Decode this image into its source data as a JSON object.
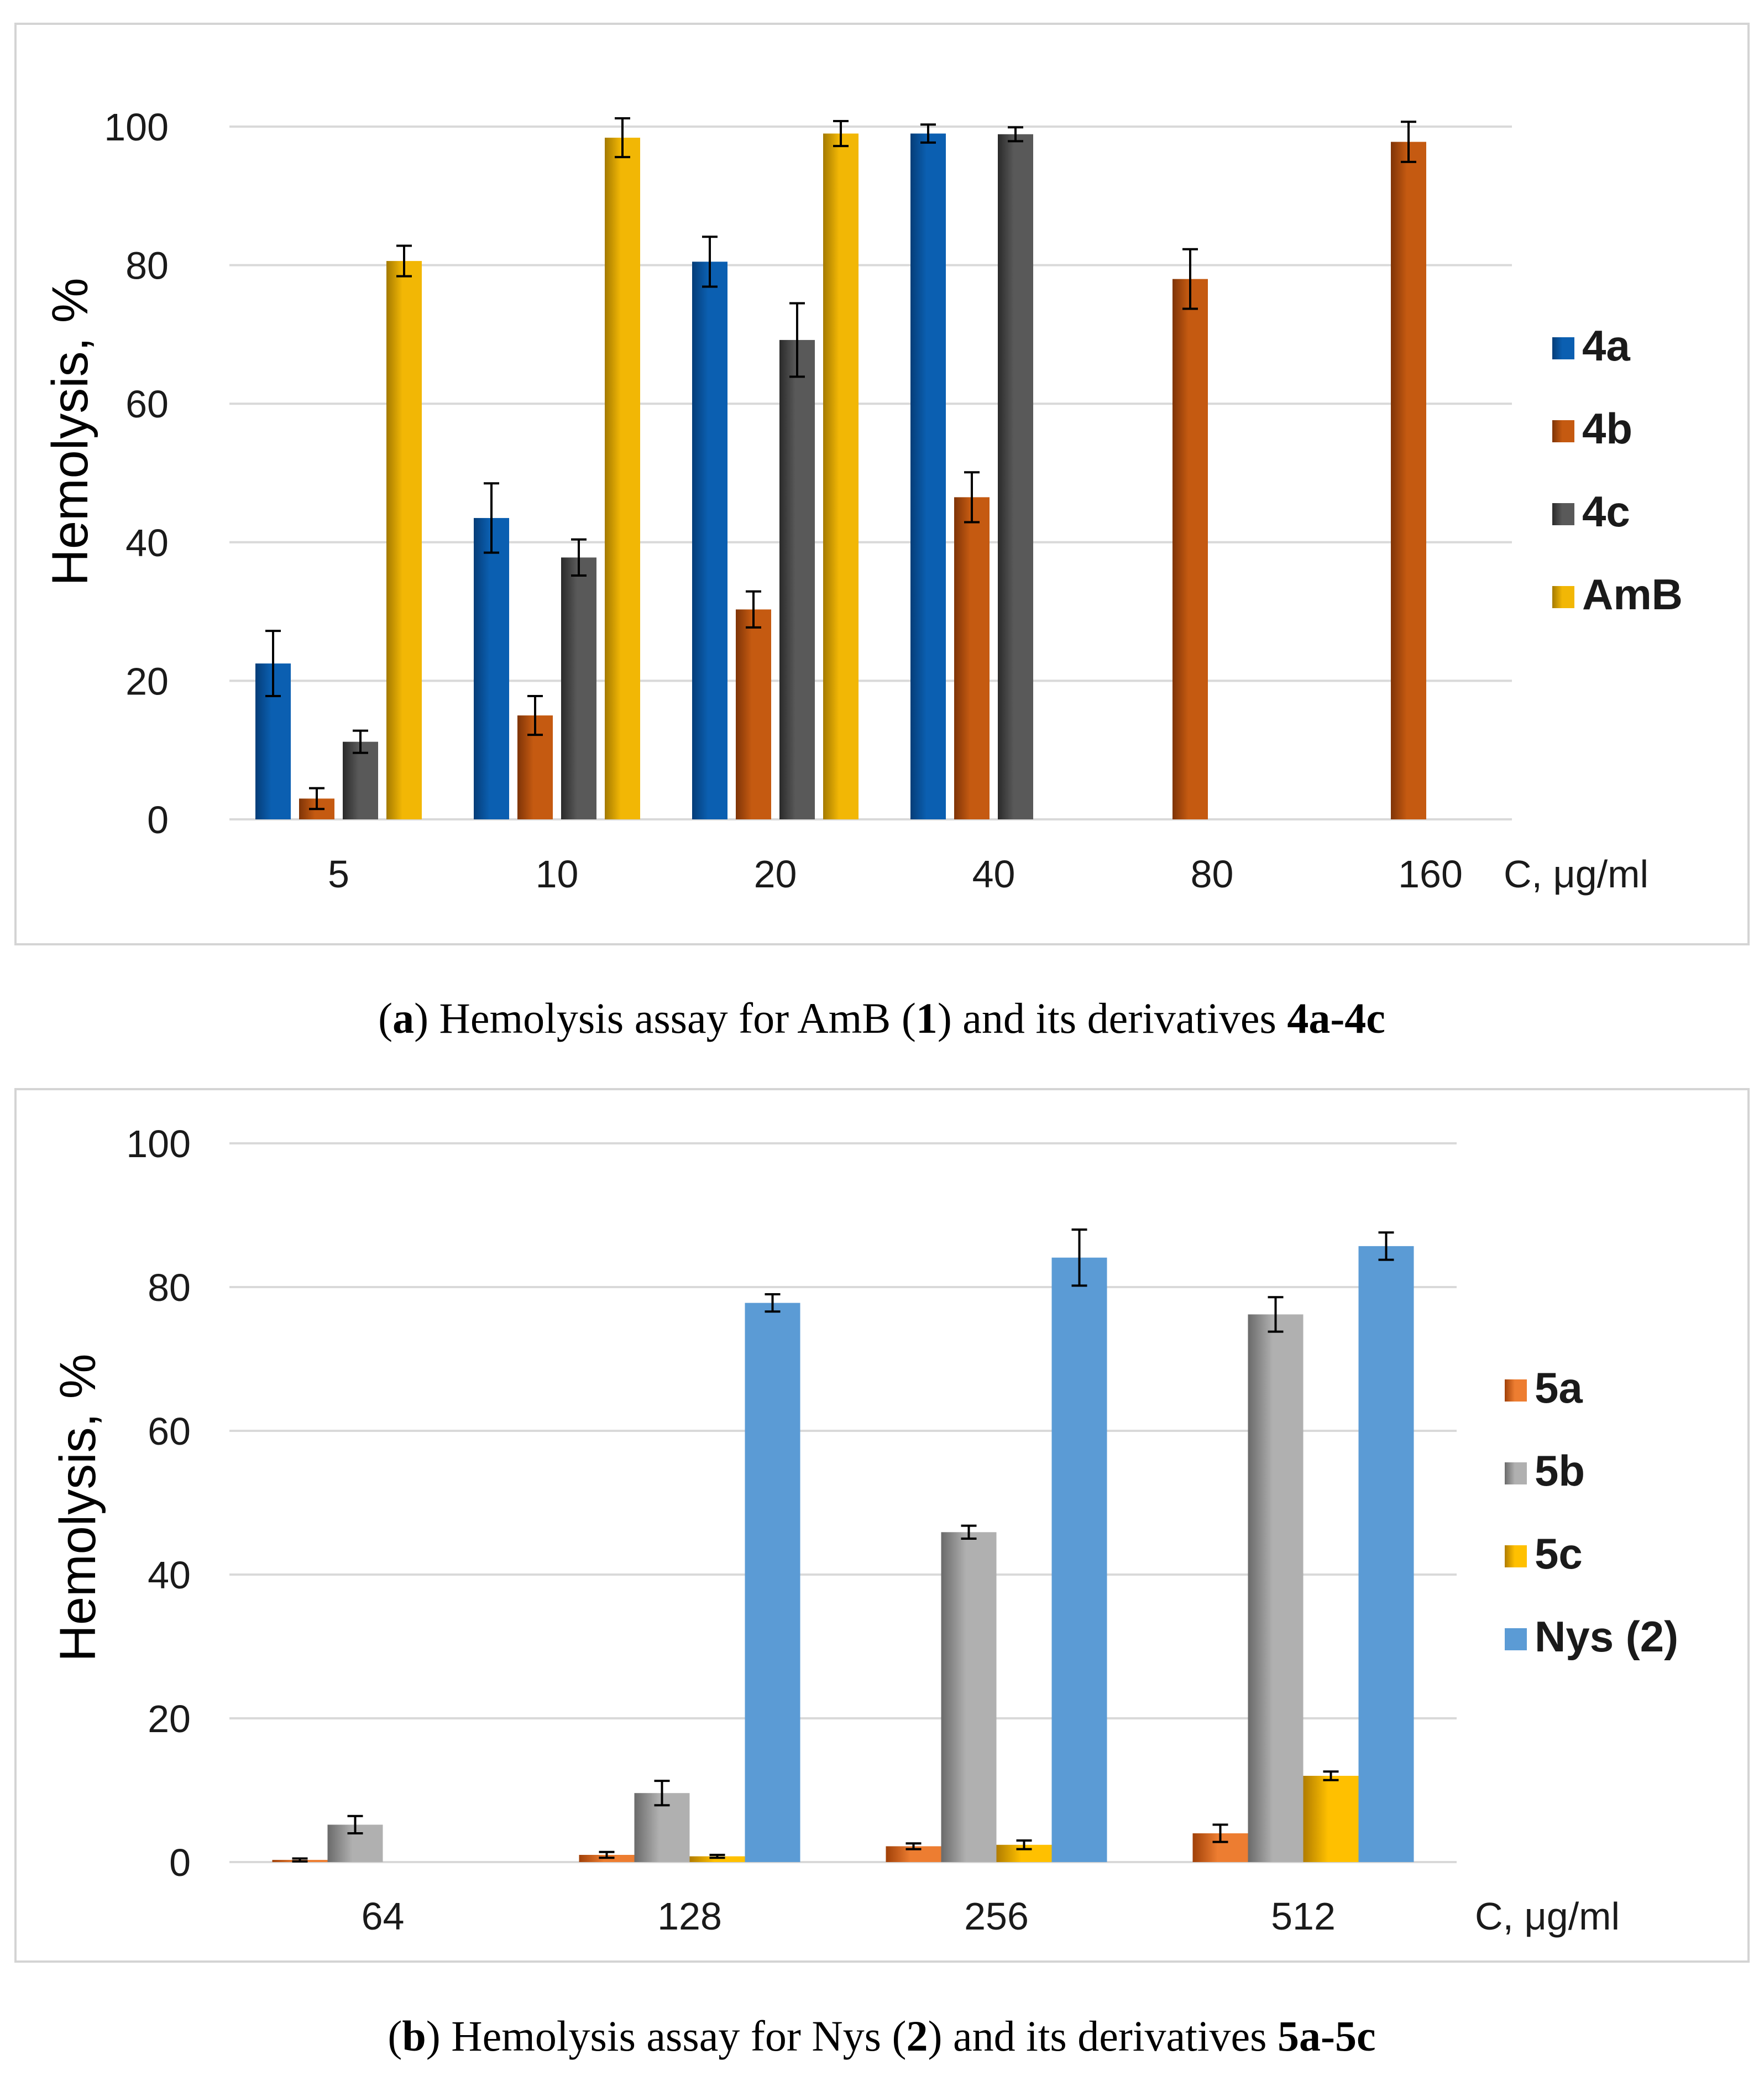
{
  "chart_data": [
    {
      "type": "bar",
      "panel": "a",
      "ylabel": "Hemolysis, %",
      "xlabel": "C, μg/ml",
      "ylim": [
        0,
        100
      ],
      "yticks": [
        0,
        20,
        40,
        60,
        80,
        100
      ],
      "grid": true,
      "legend_position": "right",
      "categories": [
        "5",
        "10",
        "20",
        "40",
        "80",
        "160"
      ],
      "series": [
        {
          "name": "4a",
          "color": "#0b5fb1",
          "colorDark": "#053d78",
          "values": [
            22.5,
            43.5,
            80.5,
            99,
            null,
            null
          ],
          "errors": [
            4.7,
            5.0,
            3.6,
            1.3,
            null,
            null
          ]
        },
        {
          "name": "4b",
          "color": "#c55a11",
          "colorDark": "#7f3407",
          "values": [
            3,
            15,
            30.3,
            46.5,
            78,
            97.8
          ],
          "errors": [
            1.5,
            2.8,
            2.6,
            3.6,
            4.3,
            2.9
          ]
        },
        {
          "name": "4c",
          "color": "#595959",
          "colorDark": "#2a2a2a",
          "values": [
            11.2,
            37.8,
            69.2,
            98.9,
            null,
            null
          ],
          "errors": [
            1.6,
            2.6,
            5.3,
            1.0,
            null,
            null
          ]
        },
        {
          "name": "AmB",
          "color": "#f2b705",
          "colorDark": "#a47a00",
          "values": [
            80.6,
            98.4,
            99,
            null,
            null,
            null
          ],
          "errors": [
            2.2,
            2.8,
            1.8,
            null,
            null,
            null
          ]
        }
      ],
      "caption": {
        "prefix": "(",
        "letter": "a",
        "text1": ") Hemolysis assay for AmB (",
        "num": "1",
        "text2": ") and its derivatives ",
        "bold_tail": "4a-4c"
      }
    },
    {
      "type": "bar",
      "panel": "b",
      "ylabel": "Hemolysis, %",
      "xlabel": "C, μg/ml",
      "ylim": [
        0,
        100
      ],
      "yticks": [
        0,
        20,
        40,
        60,
        80,
        100
      ],
      "grid": true,
      "legend_position": "right",
      "categories": [
        "64",
        "128",
        "256",
        "512"
      ],
      "series": [
        {
          "name": "5a",
          "color": "#ed7d31",
          "colorDark": "#a04008",
          "values": [
            0.3,
            1.0,
            2.2,
            4.0
          ],
          "errors": [
            0.2,
            0.4,
            0.4,
            1.2
          ]
        },
        {
          "name": "5b",
          "color": "#b0b0b0",
          "colorDark": "#6a6a6a",
          "values": [
            5.2,
            9.6,
            45.9,
            76.2
          ],
          "errors": [
            1.2,
            1.7,
            0.9,
            2.4
          ]
        },
        {
          "name": "5c",
          "color": "#ffc000",
          "colorDark": "#b07c00",
          "values": [
            null,
            0.8,
            2.4,
            12.0
          ],
          "errors": [
            null,
            0.2,
            0.6,
            0.6
          ]
        },
        {
          "name": "Nys (2)",
          "color": "#5b9bd5",
          "colorDark": "#5b9bd5",
          "values": [
            null,
            77.8,
            84.1,
            85.7
          ],
          "errors": [
            null,
            1.2,
            3.9,
            1.9
          ]
        }
      ],
      "caption": {
        "prefix": "(",
        "letter": "b",
        "text1": ") Hemolysis assay for Nys (",
        "num": "2",
        "text2": ") and its derivatives ",
        "bold_tail": "5a-5c"
      }
    }
  ]
}
